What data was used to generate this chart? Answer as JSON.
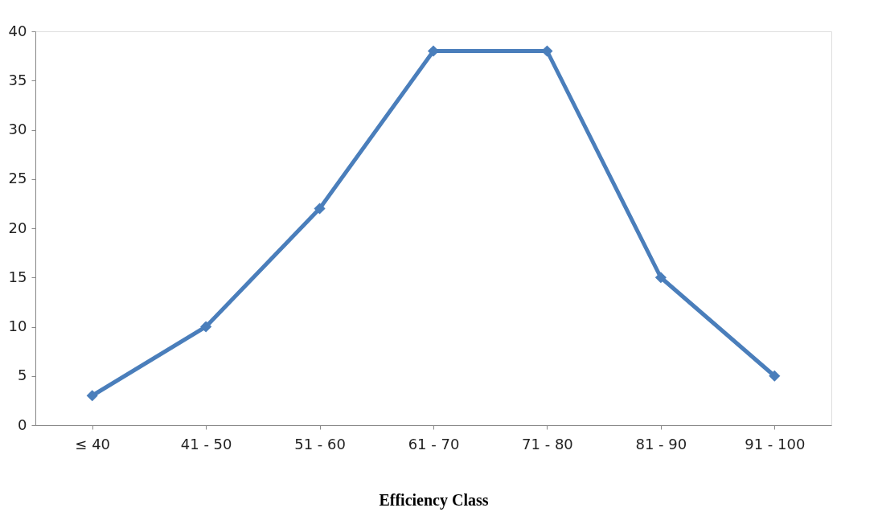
{
  "chart_data": {
    "type": "line",
    "xlabel": "Efficiency Class",
    "categories": [
      "≤ 40",
      "41 - 50",
      "51 - 60",
      "61 - 70",
      "71 - 80",
      "81 - 90",
      "91 - 100"
    ],
    "series": [
      {
        "color": "#4a7ebb",
        "values": [
          3,
          10,
          22,
          38,
          38,
          15,
          5
        ]
      }
    ],
    "ylim": [
      0,
      40
    ],
    "yticks": [
      0,
      5,
      10,
      15,
      20,
      25,
      30,
      35,
      40
    ],
    "grid": false,
    "marker": "diamond",
    "line_style": "solid"
  }
}
